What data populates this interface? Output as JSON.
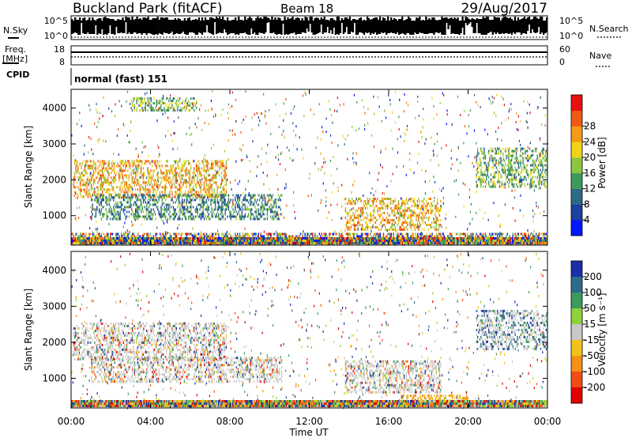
{
  "header": {
    "station": "Buckland Park (fitACF)",
    "beam": "Beam 18",
    "date": "29/Aug/2017"
  },
  "noise_panel": {
    "left_label": "N.Sky",
    "right_label": "N.Search",
    "ticks": [
      "10^5",
      "10^0"
    ]
  },
  "freq_panel": {
    "label_line1": "Freq.",
    "label_line2": "[MHz]",
    "left_ticks": [
      "18",
      "8"
    ],
    "right_label": "Nave",
    "right_ticks": [
      "60",
      "0"
    ]
  },
  "cpid_panel": {
    "label": "CPID",
    "text": "normal (fast) 151"
  },
  "x_axis": {
    "label": "Time UT",
    "ticks": [
      "00:00",
      "04:00",
      "08:00",
      "12:00",
      "16:00",
      "20:00",
      "00:00"
    ]
  },
  "chart_data": [
    {
      "type": "heatmap",
      "name": "power",
      "ylabel": "Slant Range [km]",
      "yticks": [
        1000,
        2000,
        3000,
        4000
      ],
      "ylim": [
        200,
        4500
      ],
      "xlim_hours": [
        0,
        24
      ],
      "colorbar": {
        "label": "Power [dB]",
        "ticks": [
          "4",
          "8",
          "12",
          "16",
          "20",
          "24",
          "28"
        ],
        "colors": [
          "#0018ff",
          "#1d3f9e",
          "#2c6a86",
          "#3e9a5a",
          "#8cc63f",
          "#f3d21a",
          "#f49a16",
          "#ef5a14",
          "#e61010"
        ]
      },
      "regions": [
        {
          "t": [
            0.1,
            7.8
          ],
          "r": [
            1550,
            2550
          ],
          "level": "high"
        },
        {
          "t": [
            3.0,
            6.3
          ],
          "r": [
            3950,
            4300
          ],
          "level": "mid"
        },
        {
          "t": [
            1.0,
            10.6
          ],
          "r": [
            900,
            1600
          ],
          "level": "low"
        },
        {
          "t": [
            13.8,
            18.6
          ],
          "r": [
            600,
            1500
          ],
          "level": "high"
        },
        {
          "t": [
            20.4,
            24
          ],
          "r": [
            1800,
            2900
          ],
          "level": "mid"
        },
        {
          "t": [
            0,
            24
          ],
          "r": [
            200,
            520
          ],
          "level": "mixed"
        }
      ]
    },
    {
      "type": "heatmap",
      "name": "velocity",
      "ylabel": "Slant Range [km]",
      "yticks": [
        1000,
        2000,
        3000,
        4000
      ],
      "ylim": [
        200,
        4500
      ],
      "xlim_hours": [
        0,
        24
      ],
      "colorbar": {
        "label": "Velocity [m s⁻¹]",
        "ticks": [
          "200",
          "100",
          "50",
          "15",
          "-15",
          "-50",
          "-100",
          "-200"
        ],
        "colors": [
          "#1c2fa6",
          "#2f6b8c",
          "#3d9a5a",
          "#8fd13a",
          "#c8c8c8",
          "#f3c21a",
          "#f49116",
          "#ef4d14",
          "#e00000"
        ]
      },
      "regions": [
        {
          "t": [
            0.1,
            7.8
          ],
          "r": [
            1550,
            2550
          ],
          "level": "grey"
        },
        {
          "t": [
            1.0,
            10.6
          ],
          "r": [
            900,
            1600
          ],
          "level": "grey"
        },
        {
          "t": [
            13.8,
            18.6
          ],
          "r": [
            600,
            1500
          ],
          "level": "grey"
        },
        {
          "t": [
            16.5,
            20.0
          ],
          "r": [
            250,
            550
          ],
          "level": "orange"
        },
        {
          "t": [
            20.4,
            24
          ],
          "r": [
            1800,
            2900
          ],
          "level": "blue"
        }
      ]
    }
  ]
}
